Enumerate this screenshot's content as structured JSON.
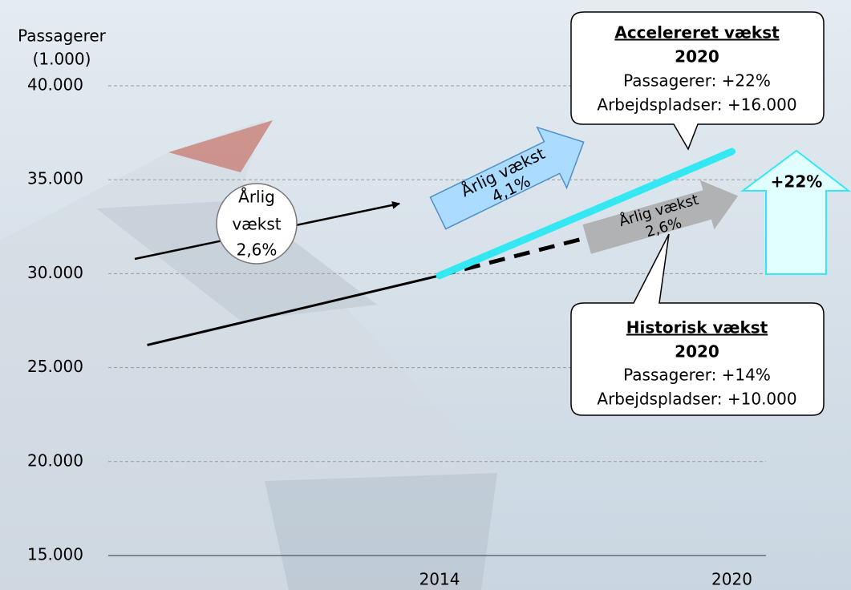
{
  "chart_data": {
    "type": "line",
    "y_label": [
      "Passagerer",
      "(1.000)"
    ],
    "xlim": [
      2007.2,
      2020.7
    ],
    "xticks": [
      2014,
      2020
    ],
    "ylim": [
      15000,
      40000
    ],
    "yticks": [
      {
        "value": 15000,
        "label": "15.000"
      },
      {
        "value": 20000,
        "label": "20.000"
      },
      {
        "value": 25000,
        "label": "25.000"
      },
      {
        "value": 30000,
        "label": "30.000"
      },
      {
        "value": 35000,
        "label": "35.000"
      },
      {
        "value": 40000,
        "label": "40.000"
      }
    ],
    "grid": true,
    "series": [
      {
        "x": [
          2008,
          2014
        ],
        "values": [
          26200,
          29900
        ],
        "color": "#000000",
        "style": "solid"
      },
      {
        "x": [
          2014,
          2017
        ],
        "values": [
          29900,
          31900
        ],
        "color": "#000000",
        "style": "dashed"
      },
      {
        "x": [
          2014,
          2020
        ],
        "values": [
          29900,
          36500
        ],
        "color": "#33e8f2",
        "style": "solid"
      }
    ],
    "annotations": {
      "circle": [
        "Årlig",
        "vækst",
        "2,6%"
      ],
      "accelerated_arrow": [
        "Årlig vækst",
        "4,1%"
      ],
      "historic_arrow": [
        "Årlig vækst",
        "2,6%"
      ],
      "increase": "+22%",
      "accelerated_box": {
        "title": "Accelereret vækst",
        "year": "2020",
        "lines": [
          "Passagerer: +22%",
          "Arbejdspladser: +16.000"
        ]
      },
      "historic_box": {
        "title": "Historisk vækst",
        "year": "2020",
        "lines": [
          "Passagerer: +14%",
          "Arbejdspladser: +10.000"
        ]
      }
    }
  }
}
